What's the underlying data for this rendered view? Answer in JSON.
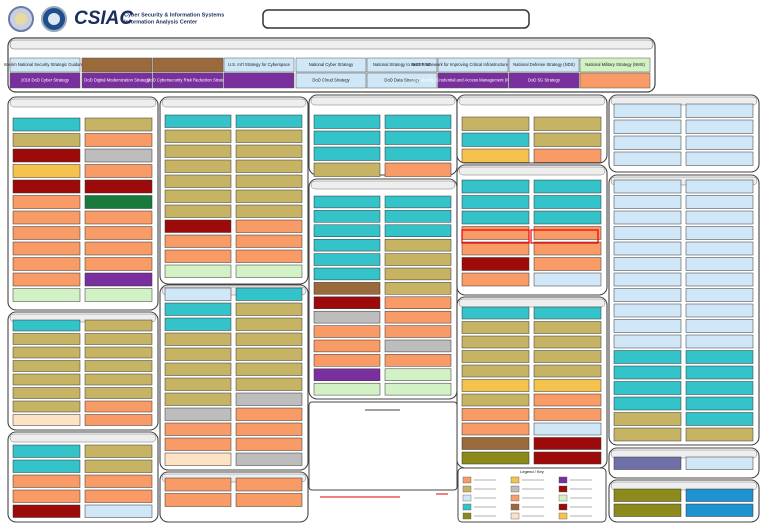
{
  "header": {
    "logo": "CSIAC",
    "subtitle_line1": "Cyber Security & Information Systems",
    "subtitle_line2": "Information Analysis Center"
  },
  "strategies": {
    "row1": [
      "Interim National Security Strategic Guidance",
      "U.S. Int'l Strategy for Cyberspace",
      "National Cyber Strategy",
      "National Strategy to Secure 5G",
      "NIST Framework for Improving Critical Infrastructure Cybersecurity",
      "National Defense Strategy (NDS)",
      "National Military Strategy (NMS)"
    ],
    "row2": [
      "2018 DoD Cyber Strategy",
      "DoD Digital Modernization Strategy",
      "DoD Cybersecurity Risk Reduction Strategy",
      "DoD Cloud Strategy",
      "DoD Data Strategy",
      "DoD Identity, Credential and Access Management (ICAM) Strategy",
      "DoD 5G Strategy"
    ]
  },
  "legend": {
    "title": "Legend / Key"
  }
}
